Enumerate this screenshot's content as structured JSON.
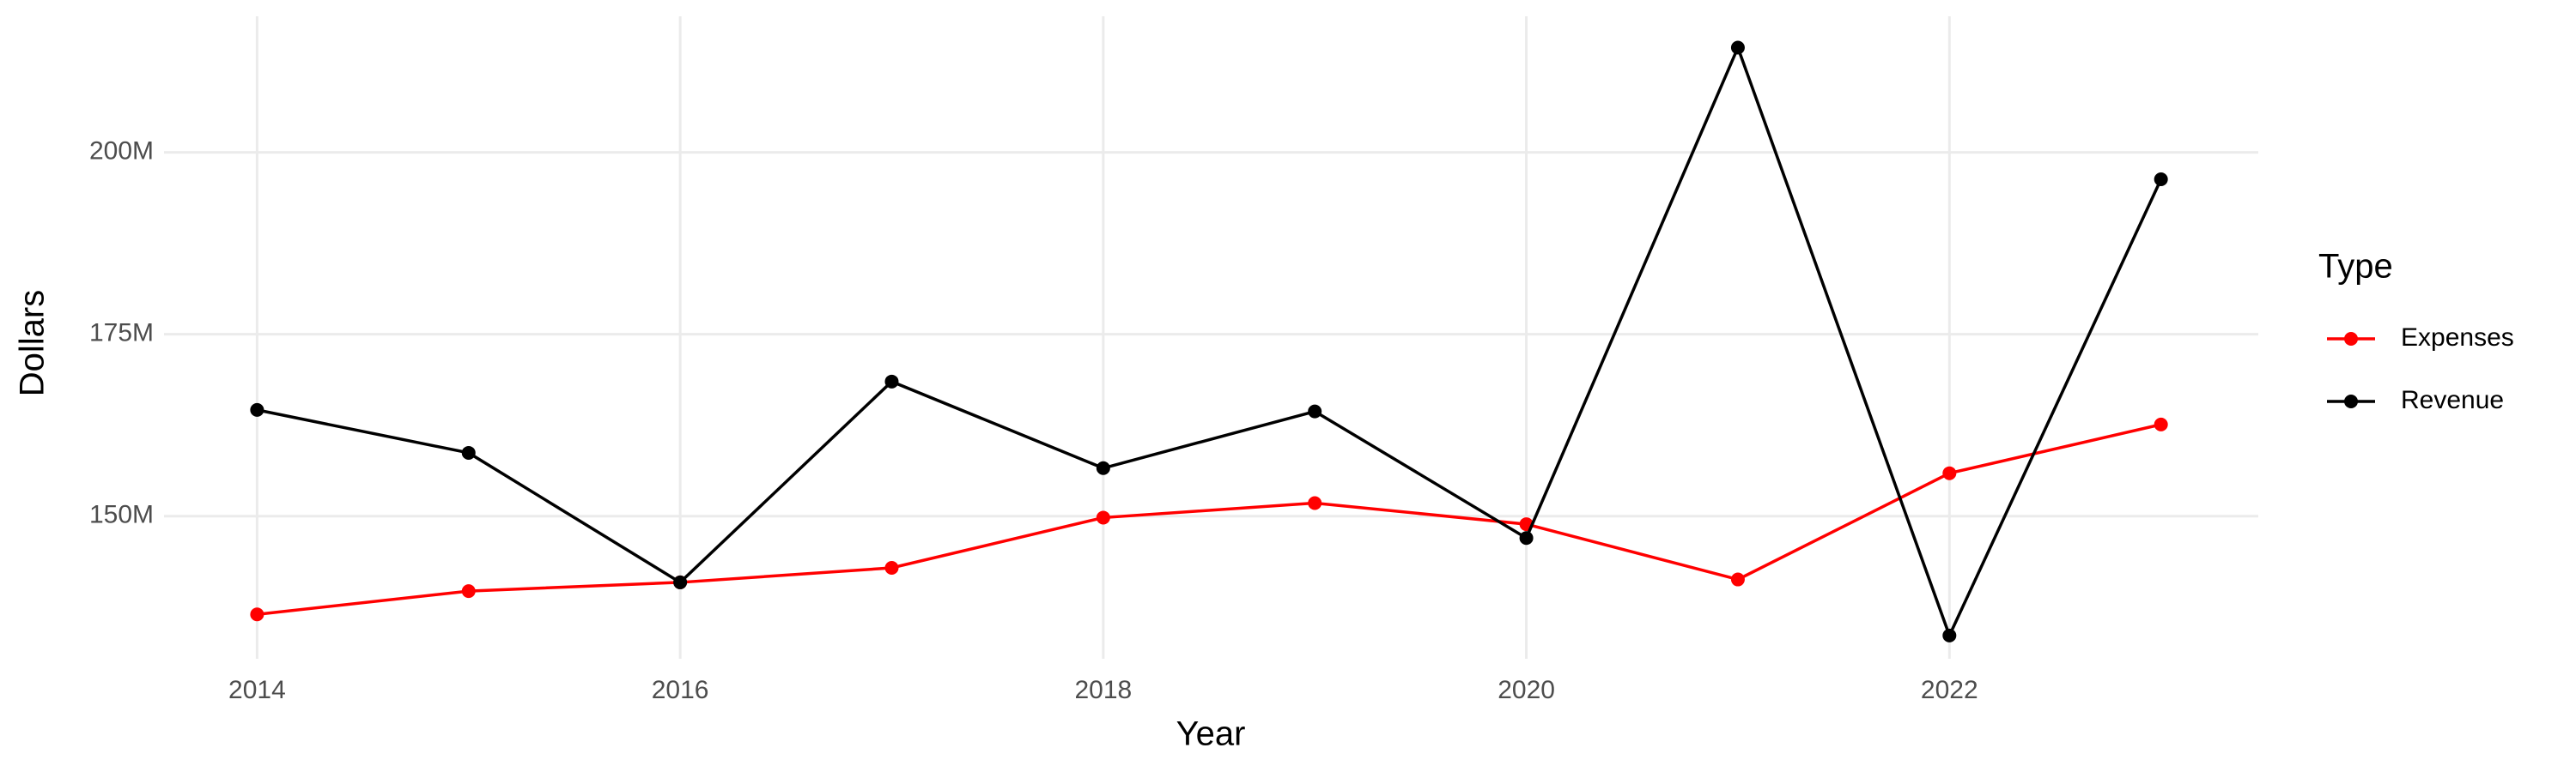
{
  "chart_data": {
    "type": "line",
    "x_label": "Year",
    "y_label": "Dollars",
    "legend_title": "Type",
    "legend_position": "right",
    "grid": true,
    "x": [
      2014,
      2015,
      2016,
      2017,
      2018,
      2019,
      2020,
      2021,
      2022,
      2023
    ],
    "series": [
      {
        "name": "Expenses",
        "color": "#ff0000",
        "values": [
          136500000,
          139700000,
          140900000,
          142900000,
          149800000,
          151800000,
          148900000,
          141300000,
          155900000,
          162600000
        ]
      },
      {
        "name": "Revenue",
        "color": "#000000",
        "values": [
          164600000,
          158700000,
          140900000,
          168500000,
          156600000,
          164400000,
          147000000,
          214400000,
          133600000,
          196300000
        ]
      }
    ],
    "xlim": [
      2013.56,
      2023.46
    ],
    "xticks": [
      2014,
      2016,
      2018,
      2020,
      2022
    ],
    "ylim": [
      130400000,
      218700000
    ],
    "yticks": [
      {
        "value": 150000000,
        "label": "150M"
      },
      {
        "value": 175000000,
        "label": "175M"
      },
      {
        "value": 200000000,
        "label": "200M"
      }
    ]
  }
}
